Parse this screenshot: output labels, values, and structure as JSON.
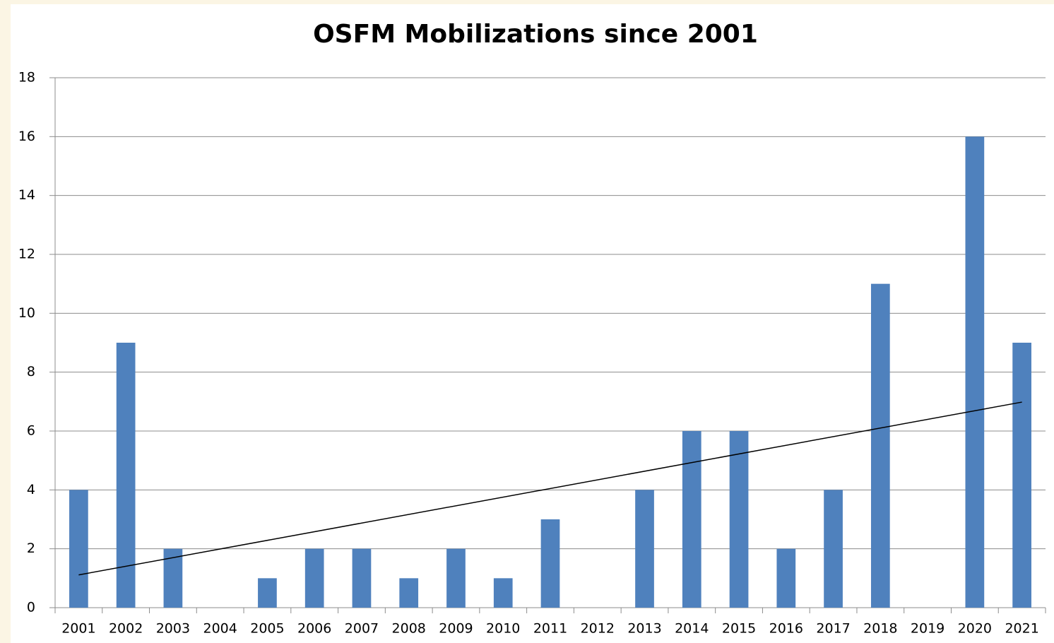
{
  "chart_data": {
    "type": "bar",
    "title": "OSFM Mobilizations since 2001",
    "categories": [
      "2001",
      "2002",
      "2003",
      "2004",
      "2005",
      "2006",
      "2007",
      "2008",
      "2009",
      "2010",
      "2011",
      "2012",
      "2013",
      "2014",
      "2015",
      "2016",
      "2017",
      "2018",
      "2019",
      "2020",
      "2021"
    ],
    "values": [
      4,
      9,
      2,
      0,
      1,
      2,
      2,
      1,
      2,
      1,
      3,
      0,
      4,
      6,
      6,
      2,
      4,
      11,
      0,
      16,
      9
    ],
    "color": "#4f81bd",
    "ylim": [
      0,
      18
    ],
    "yticks": [
      0,
      2,
      4,
      6,
      8,
      10,
      12,
      14,
      16,
      18
    ],
    "grid": true,
    "trendline": "linear"
  }
}
